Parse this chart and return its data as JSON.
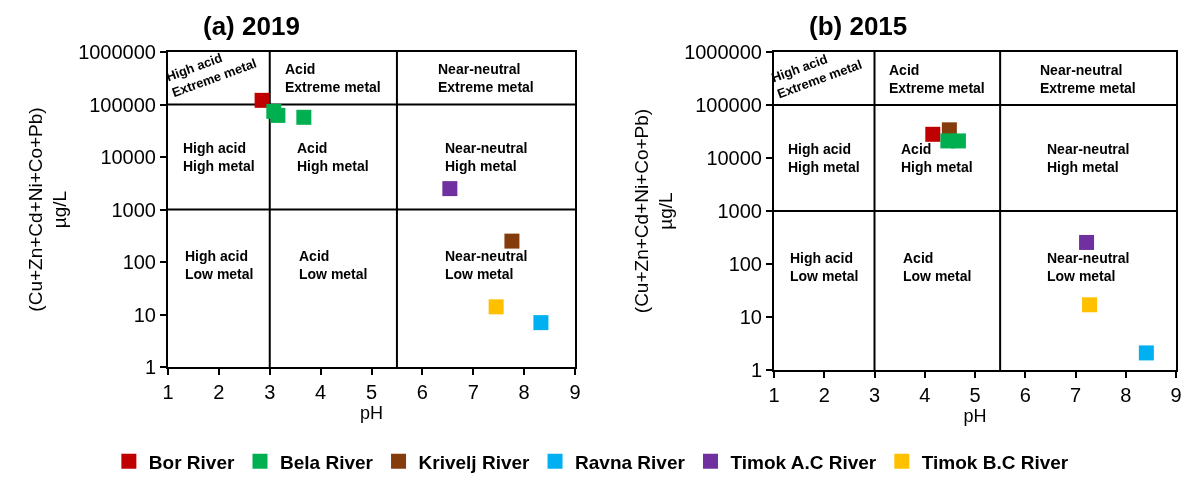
{
  "chart_data": [
    {
      "type": "scatter",
      "title": "(a) 2019",
      "xlabel": "pH",
      "ylabel": "(Cu+Zn+Cd+Ni+Co+Pb)\nµg/L",
      "log": "y",
      "xlim": [
        1,
        9
      ],
      "xticks": [
        1,
        2,
        3,
        4,
        5,
        6,
        7,
        8,
        9
      ],
      "ylim": [
        1,
        1000000
      ],
      "yticks": [
        1,
        10,
        100,
        1000,
        10000,
        100000,
        1000000
      ],
      "grid": false,
      "legend": "bottom",
      "marker": "square",
      "series": [
        {
          "name": "Bor River",
          "color": "#c00000",
          "x": [
            2.85
          ],
          "values": [
            120000
          ]
        },
        {
          "name": "Bela River",
          "color": "#00b050",
          "x": [
            3.08,
            3.16,
            3.67
          ],
          "values": [
            74000,
            62000,
            57000
          ]
        },
        {
          "name": "Krivelj River",
          "color": "#843c0c",
          "x": [
            7.76
          ],
          "values": [
            250
          ]
        },
        {
          "name": "Ravna River",
          "color": "#00b0f0",
          "x": [
            8.33
          ],
          "values": [
            7
          ]
        },
        {
          "name": "Timok A.C River",
          "color": "#7030a0",
          "x": [
            6.54
          ],
          "values": [
            2500
          ]
        },
        {
          "name": "Timok B.C River",
          "color": "#ffc000",
          "x": [
            7.45
          ],
          "values": [
            14
          ]
        }
      ],
      "ref_lines": [
        {
          "axis": "x",
          "value": 3,
          "color": "#000000"
        },
        {
          "axis": "x",
          "value": 5.5,
          "color": "#000000"
        },
        {
          "axis": "y",
          "value": 1000,
          "color": "#000000"
        },
        {
          "axis": "y",
          "value": 100000,
          "color": "#000000"
        }
      ],
      "annotations": [
        "High acid\nExtreme metal",
        "Acid\nExtreme metal",
        "Near-neutral\nExtreme metal",
        "High acid\nHigh metal",
        "Acid\nHigh metal",
        "Near-neutral\nHigh metal",
        "High acid\nLow metal",
        "Acid\nLow metal",
        "Near-neutral\nLow metal"
      ]
    },
    {
      "type": "scatter",
      "title": "(b) 2015",
      "xlabel": "pH",
      "ylabel": "(Cu+Zn+Cd+Ni+Co+Pb)\nµg/L",
      "log": "y",
      "xlim": [
        1,
        9
      ],
      "xticks": [
        1,
        2,
        3,
        4,
        5,
        6,
        7,
        8,
        9
      ],
      "ylim": [
        1,
        1000000
      ],
      "yticks": [
        1,
        10,
        100,
        1000,
        10000,
        100000,
        1000000
      ],
      "grid": false,
      "marker": "square",
      "series": [
        {
          "name": "Bor River",
          "color": "#c00000",
          "x": [
            4.16
          ],
          "values": [
            28000
          ]
        },
        {
          "name": "Krivelj River",
          "color": "#843c0c",
          "x": [
            4.49
          ],
          "values": [
            34000
          ]
        },
        {
          "name": "Bela River",
          "color": "#00b050",
          "x": [
            4.46,
            4.67
          ],
          "values": [
            21000,
            21000
          ]
        },
        {
          "name": "Ravna River",
          "color": "#00b0f0",
          "x": [
            8.41
          ],
          "values": [
            2.1
          ]
        },
        {
          "name": "Timok A.C River",
          "color": "#7030a0",
          "x": [
            7.22
          ],
          "values": [
            255
          ]
        },
        {
          "name": "Timok B.C River",
          "color": "#ffc000",
          "x": [
            7.28
          ],
          "values": [
            17
          ]
        }
      ],
      "ref_lines": [
        {
          "axis": "x",
          "value": 3,
          "color": "#000000"
        },
        {
          "axis": "x",
          "value": 5.5,
          "color": "#000000"
        },
        {
          "axis": "y",
          "value": 1000,
          "color": "#000000"
        },
        {
          "axis": "y",
          "value": 100000,
          "color": "#000000"
        }
      ],
      "annotations": [
        "High acid\nExtreme metal",
        "Acid\nExtreme metal",
        "Near-neutral\nExtreme metal",
        "High acid\nHigh metal",
        "Acid\nHigh metal",
        "Near-neutral\nHigh metal",
        "High acid\nLow metal",
        "Acid\nLow metal",
        "Near-neutral\nLow metal"
      ]
    }
  ]
}
